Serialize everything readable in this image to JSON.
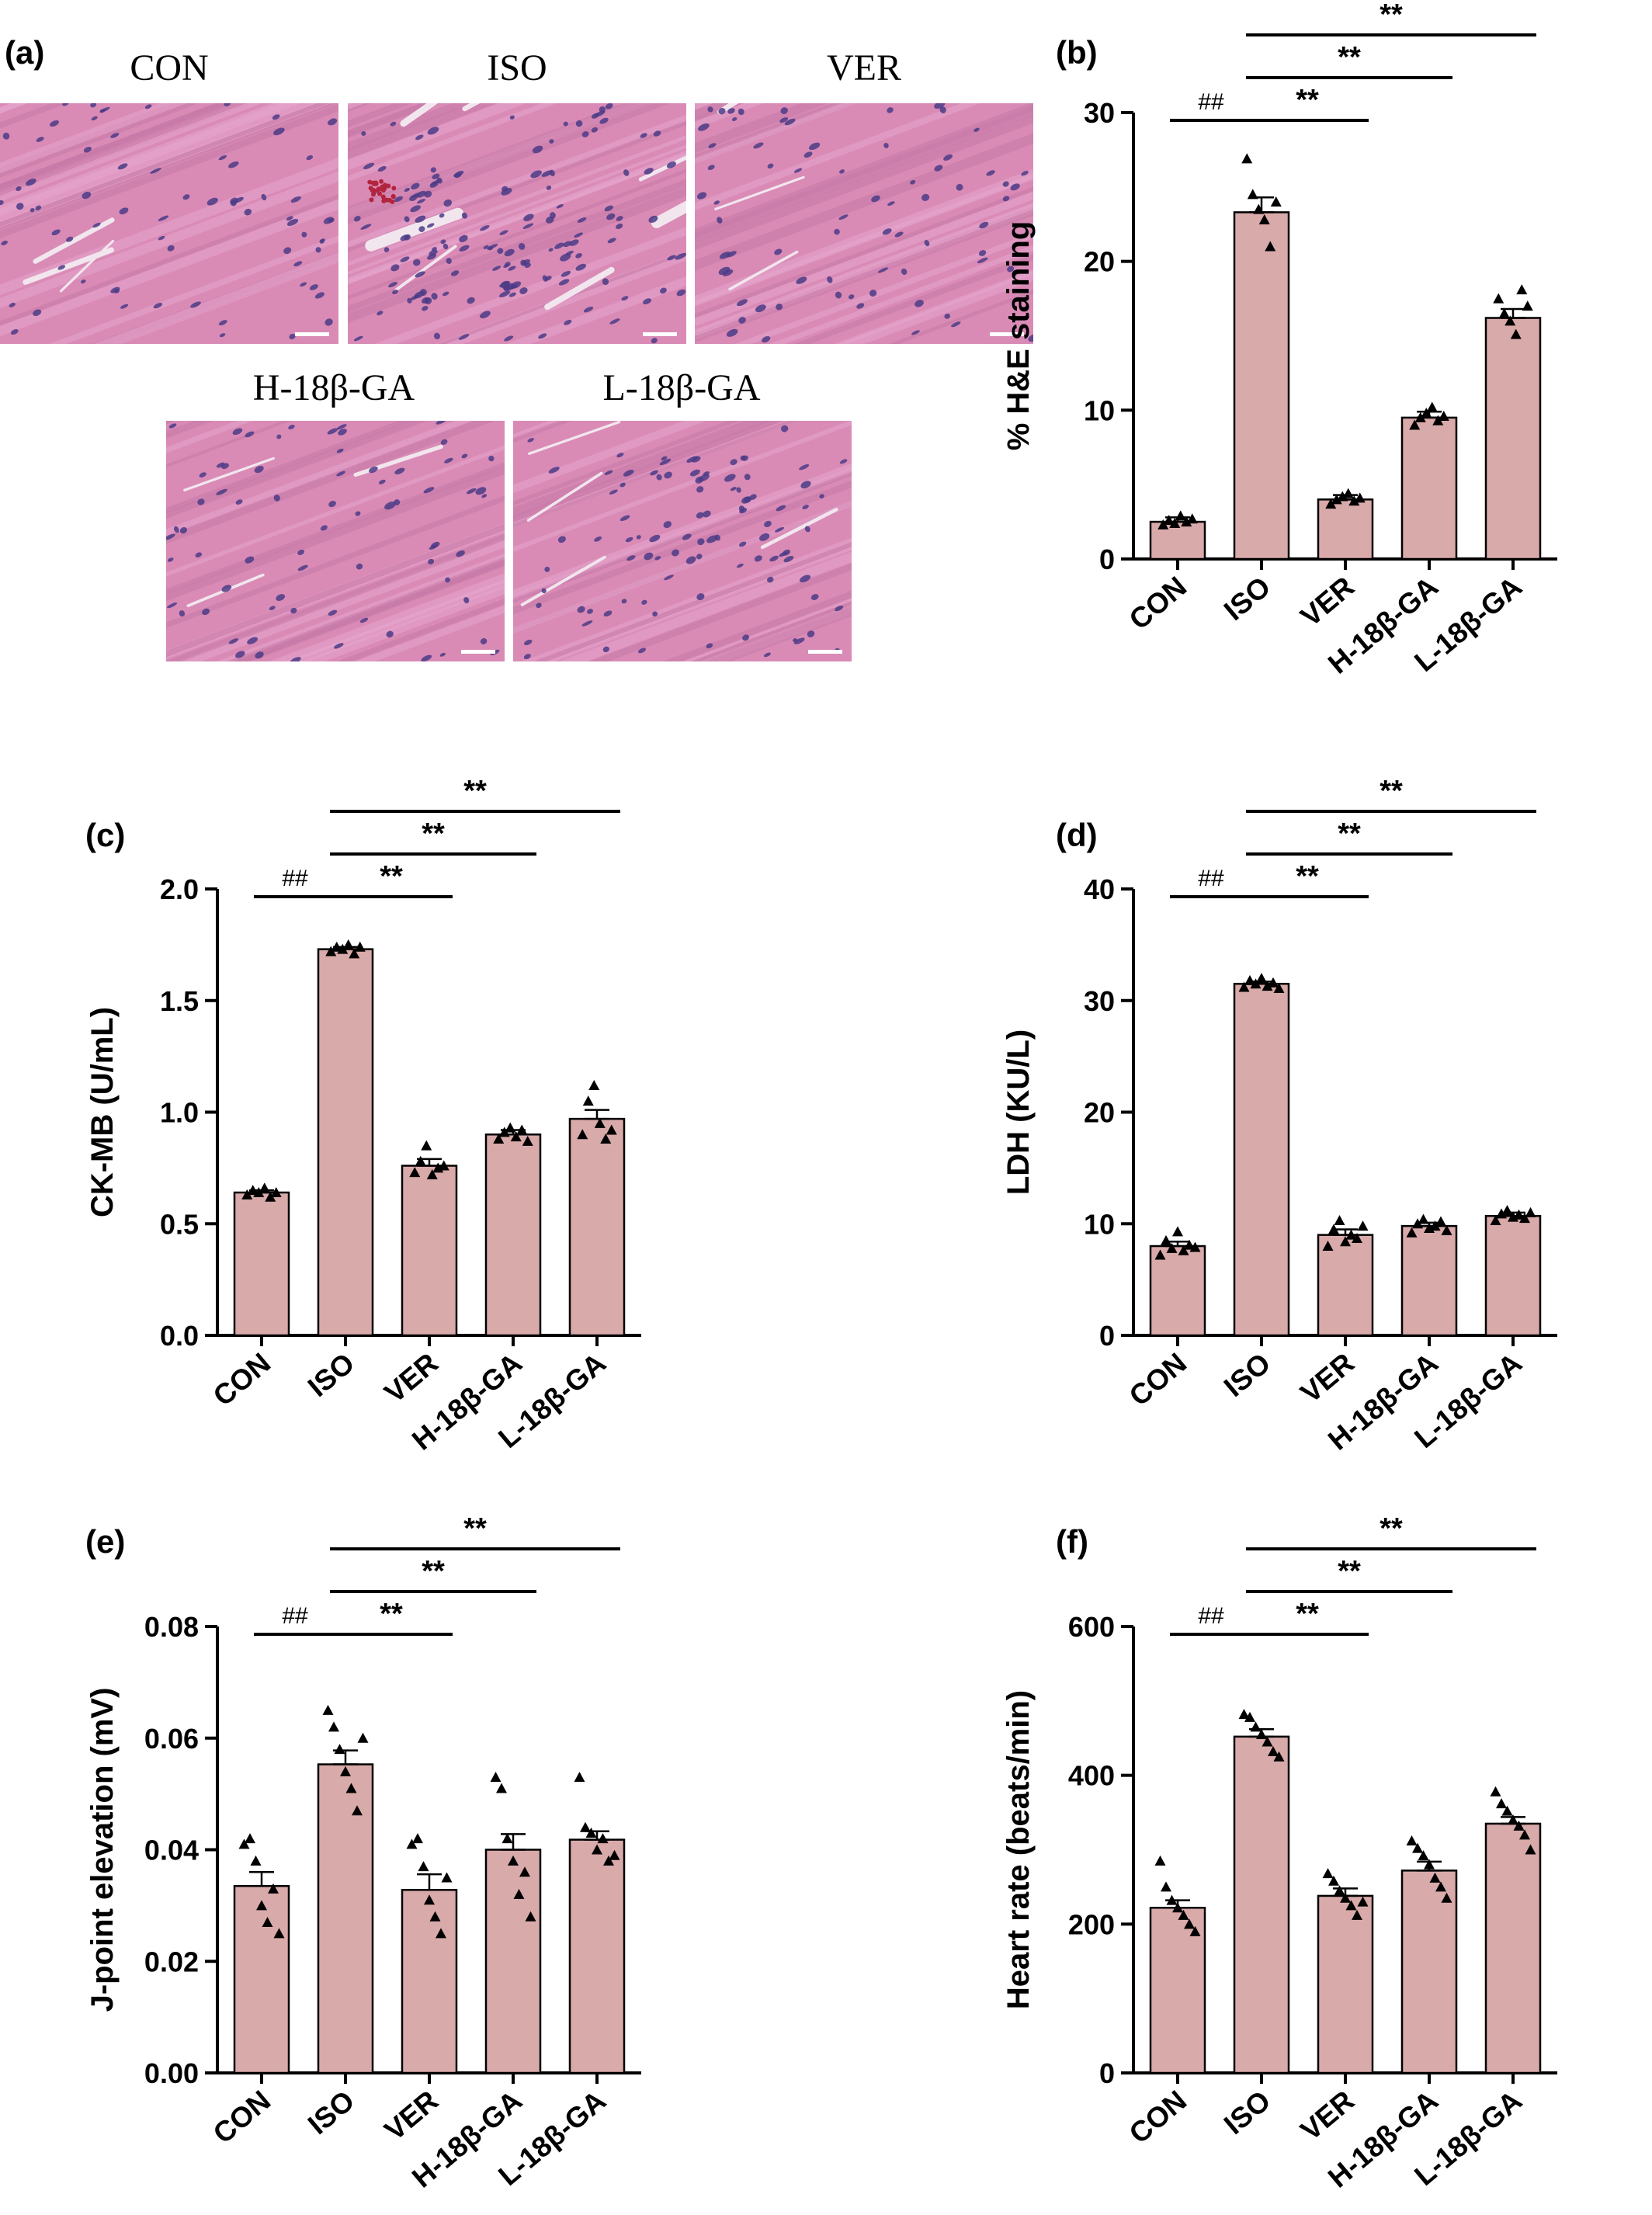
{
  "panel_letters": {
    "a": "(a)",
    "b": "(b)",
    "c": "(c)",
    "d": "(d)",
    "e": "(e)",
    "f": "(f)"
  },
  "micrographs": [
    {
      "label": "CON",
      "condition": "normal"
    },
    {
      "label": "ISO",
      "condition": "damaged"
    },
    {
      "label": "VER",
      "condition": "normal"
    },
    {
      "label": "H-18β-GA",
      "condition": "normal"
    },
    {
      "label": "L-18β-GA",
      "condition": "mild"
    }
  ],
  "colors": {
    "bar_fill": "#d9aaaa",
    "bar_stroke": "#000000",
    "tissue_base": "#d98bb6",
    "nuclei": "#4b3b86",
    "scale_bar": "#ffffff"
  },
  "chart_data": [
    {
      "panel": "b",
      "type": "bar",
      "categories": [
        "CON",
        "ISO",
        "VER",
        "H-18β-GA",
        "L-18β-GA"
      ],
      "values": [
        2.5,
        23.3,
        4.0,
        9.5,
        16.2
      ],
      "errors": [
        0.3,
        1.0,
        0.3,
        0.4,
        0.6
      ],
      "points": [
        [
          2.3,
          2.6,
          2.4,
          2.9,
          2.5,
          2.7
        ],
        [
          26.9,
          24.5,
          23.5,
          22.8,
          21.0,
          24.0
        ],
        [
          3.7,
          4.0,
          4.2,
          4.4,
          3.9,
          4.1
        ],
        [
          9.0,
          9.5,
          9.8,
          10.2,
          9.3,
          9.6
        ],
        [
          17.5,
          16.5,
          16.0,
          15.1,
          18.1,
          17.0
        ]
      ],
      "ylabel": "% H&E staining",
      "ylim": [
        0,
        30
      ],
      "yticks": [
        "0",
        "10",
        "20",
        "30"
      ],
      "tickvals": [
        0,
        10,
        20,
        30
      ],
      "annotations": [
        {
          "text": "##",
          "from": 0,
          "to": 1,
          "level": 0
        },
        {
          "text": "**",
          "from": 1,
          "to": 2,
          "level": 0
        },
        {
          "text": "**",
          "from": 1,
          "to": 3,
          "level": 1
        },
        {
          "text": "**",
          "from": 1,
          "to": 4,
          "level": 2
        }
      ]
    },
    {
      "panel": "c",
      "type": "bar",
      "categories": [
        "CON",
        "ISO",
        "VER",
        "H-18β-GA",
        "L-18β-GA"
      ],
      "values": [
        0.64,
        1.73,
        0.76,
        0.9,
        0.97
      ],
      "errors": [
        0.01,
        0.01,
        0.03,
        0.02,
        0.04
      ],
      "points": [
        [
          0.63,
          0.65,
          0.64,
          0.66,
          0.62,
          0.64
        ],
        [
          1.72,
          1.74,
          1.73,
          1.75,
          1.71,
          1.74
        ],
        [
          0.73,
          0.78,
          0.85,
          0.72,
          0.75,
          0.76
        ],
        [
          0.88,
          0.91,
          0.93,
          0.89,
          0.92,
          0.87
        ],
        [
          0.9,
          1.05,
          1.12,
          0.95,
          0.88,
          0.92
        ]
      ],
      "ylabel": "CK-MB (U/mL)",
      "ylim": [
        0,
        2.0
      ],
      "yticks": [
        "0.0",
        "0.5",
        "1.0",
        "1.5",
        "2.0"
      ],
      "tickvals": [
        0,
        0.5,
        1.0,
        1.5,
        2.0
      ],
      "annotations": [
        {
          "text": "##",
          "from": 0,
          "to": 1,
          "level": 0
        },
        {
          "text": "**",
          "from": 1,
          "to": 2,
          "level": 0
        },
        {
          "text": "**",
          "from": 1,
          "to": 3,
          "level": 1
        },
        {
          "text": "**",
          "from": 1,
          "to": 4,
          "level": 2
        }
      ]
    },
    {
      "panel": "d",
      "type": "bar",
      "categories": [
        "CON",
        "ISO",
        "VER",
        "H-18β-GA",
        "L-18β-GA"
      ],
      "values": [
        8.0,
        31.5,
        9.0,
        9.8,
        10.7
      ],
      "errors": [
        0.4,
        0.2,
        0.5,
        0.3,
        0.3
      ],
      "points": [
        [
          7.2,
          8.5,
          7.8,
          9.3,
          7.6,
          8.1,
          7.9
        ],
        [
          31.2,
          31.8,
          31.5,
          32.0,
          31.3,
          31.6,
          31.1
        ],
        [
          8.0,
          9.5,
          10.3,
          8.4,
          9.0,
          8.7,
          9.8
        ],
        [
          9.2,
          10.0,
          10.4,
          9.6,
          9.8,
          10.2,
          9.4
        ],
        [
          10.3,
          10.9,
          11.2,
          10.6,
          10.8,
          10.5,
          11.0
        ]
      ],
      "ylabel": "LDH (KU/L)",
      "ylim": [
        0,
        40
      ],
      "yticks": [
        "0",
        "10",
        "20",
        "30",
        "40"
      ],
      "tickvals": [
        0,
        10,
        20,
        30,
        40
      ],
      "annotations": [
        {
          "text": "##",
          "from": 0,
          "to": 1,
          "level": 0
        },
        {
          "text": "**",
          "from": 1,
          "to": 2,
          "level": 0
        },
        {
          "text": "**",
          "from": 1,
          "to": 3,
          "level": 1
        },
        {
          "text": "**",
          "from": 1,
          "to": 4,
          "level": 2
        }
      ]
    },
    {
      "panel": "e",
      "type": "bar",
      "categories": [
        "CON",
        "ISO",
        "VER",
        "H-18β-GA",
        "L-18β-GA"
      ],
      "values": [
        0.0335,
        0.0553,
        0.0328,
        0.04,
        0.0418
      ],
      "errors": [
        0.0025,
        0.0025,
        0.0028,
        0.0028,
        0.0015
      ],
      "points": [
        [
          0.041,
          0.042,
          0.038,
          0.03,
          0.027,
          0.033,
          0.025
        ],
        [
          0.065,
          0.062,
          0.058,
          0.054,
          0.051,
          0.047,
          0.06
        ],
        [
          0.041,
          0.042,
          0.037,
          0.031,
          0.028,
          0.025,
          0.035
        ],
        [
          0.053,
          0.051,
          0.042,
          0.038,
          0.032,
          0.036,
          0.028
        ],
        [
          0.053,
          0.044,
          0.043,
          0.04,
          0.042,
          0.038,
          0.039
        ]
      ],
      "ylabel": "J-point elevation (mV)",
      "ylim": [
        0,
        0.08
      ],
      "yticks": [
        "0.00",
        "0.02",
        "0.04",
        "0.06",
        "0.08"
      ],
      "tickvals": [
        0,
        0.02,
        0.04,
        0.06,
        0.08
      ],
      "annotations": [
        {
          "text": "##",
          "from": 0,
          "to": 1,
          "level": 0
        },
        {
          "text": "**",
          "from": 1,
          "to": 2,
          "level": 0
        },
        {
          "text": "**",
          "from": 1,
          "to": 3,
          "level": 1
        },
        {
          "text": "**",
          "from": 1,
          "to": 4,
          "level": 2
        }
      ]
    },
    {
      "panel": "f",
      "type": "bar",
      "categories": [
        "CON",
        "ISO",
        "VER",
        "H-18β-GA",
        "L-18β-GA"
      ],
      "values": [
        222,
        452,
        238,
        272,
        335
      ],
      "errors": [
        10,
        10,
        10,
        12,
        9
      ],
      "points": [
        [
          285,
          250,
          232,
          222,
          212,
          200,
          190
        ],
        [
          482,
          478,
          465,
          455,
          445,
          432,
          425
        ],
        [
          268,
          258,
          245,
          235,
          225,
          212,
          230
        ],
        [
          312,
          302,
          292,
          280,
          262,
          250,
          235
        ],
        [
          378,
          362,
          352,
          340,
          332,
          320,
          300
        ]
      ],
      "ylabel": "Heart rate (beats/min)",
      "ylim": [
        0,
        600
      ],
      "yticks": [
        "0",
        "200",
        "400",
        "600"
      ],
      "tickvals": [
        0,
        200,
        400,
        600
      ],
      "annotations": [
        {
          "text": "##",
          "from": 0,
          "to": 1,
          "level": 0
        },
        {
          "text": "**",
          "from": 1,
          "to": 2,
          "level": 0
        },
        {
          "text": "**",
          "from": 1,
          "to": 3,
          "level": 1
        },
        {
          "text": "**",
          "from": 1,
          "to": 4,
          "level": 2
        }
      ]
    }
  ]
}
